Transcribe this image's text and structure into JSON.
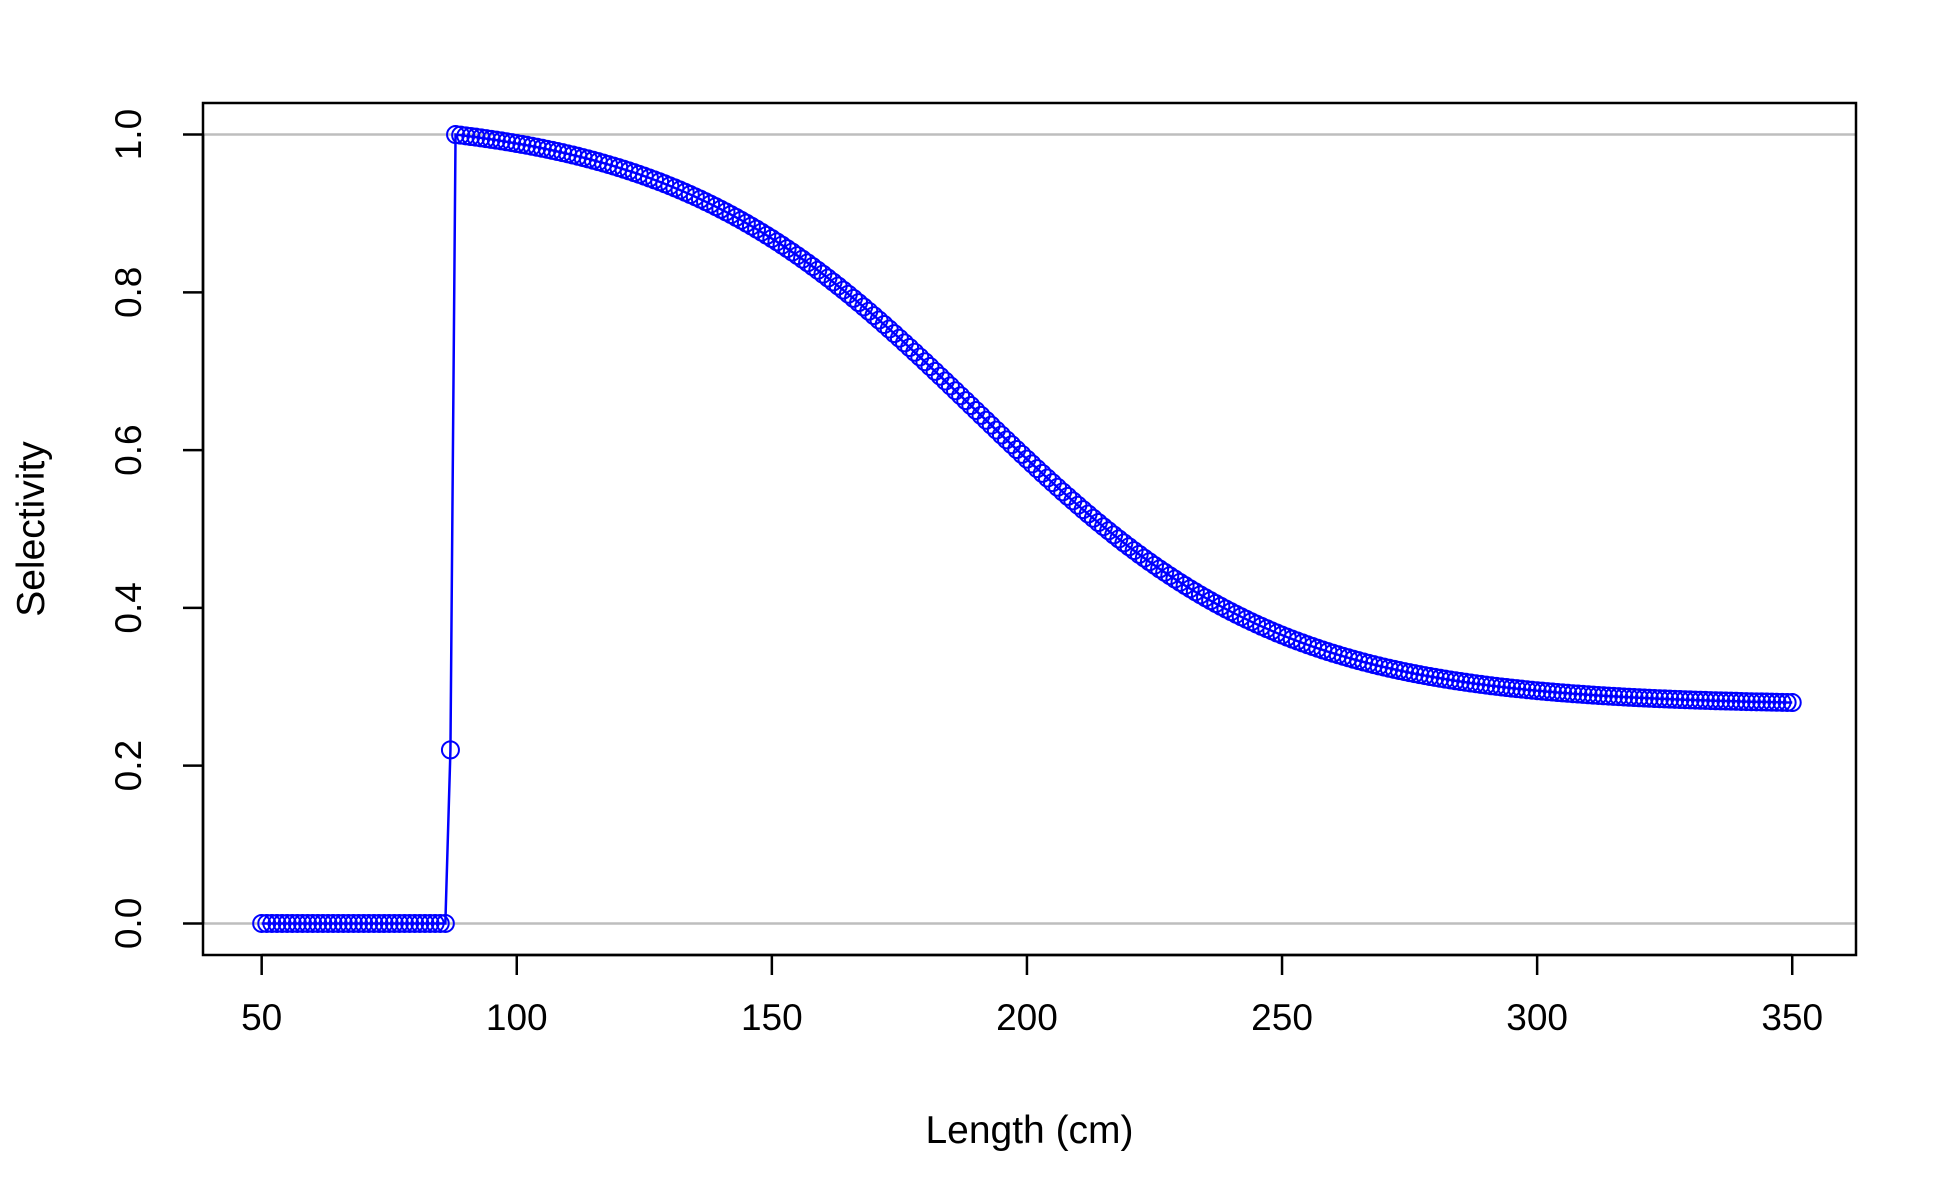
{
  "chart_data": {
    "type": "line",
    "title": "",
    "xlabel": "Length (cm)",
    "ylabel": "Selectivity",
    "xlim": [
      38.5,
      362.5
    ],
    "ylim": [
      -0.04,
      1.04
    ],
    "x_ticks": [
      50,
      100,
      150,
      200,
      250,
      300,
      350
    ],
    "x_tick_labels": [
      "50",
      "100",
      "150",
      "200",
      "250",
      "300",
      "350"
    ],
    "y_ticks": [
      0.0,
      0.2,
      0.4,
      0.6,
      0.8,
      1.0
    ],
    "y_tick_labels": [
      "0.0",
      "0.2",
      "0.4",
      "0.6",
      "0.8",
      "1.0"
    ],
    "reference_lines_y": [
      0,
      1
    ],
    "grid": false,
    "legend": "none",
    "colors": {
      "series": "#0000ff",
      "reference": "#bebebe",
      "axis": "#000000"
    },
    "series": [
      {
        "marker": "open-circle",
        "x_start": 50,
        "x_end": 350,
        "x_step": 1,
        "segments": [
          {
            "x_from": 50,
            "x_to": 86,
            "value": 0.0
          },
          {
            "x": 87,
            "value": 0.22
          },
          {
            "x_from": 88,
            "x_to": 350,
            "shape": "descending-logistic",
            "peak": 1.0,
            "final": 0.28,
            "inflection": 190,
            "width": 30
          }
        ]
      }
    ]
  }
}
